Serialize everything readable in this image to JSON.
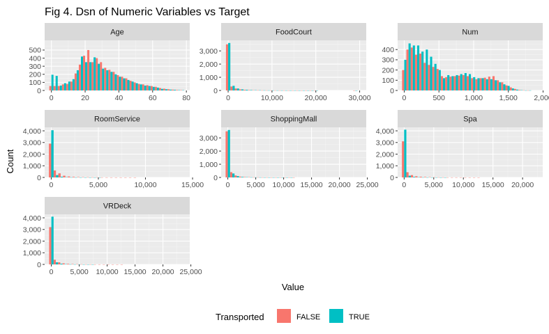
{
  "chart_data": {
    "type": "bar",
    "title": "Fig 4. Dsn of Numeric Variables vs Target",
    "xlabel": "Value",
    "ylabel": "Count",
    "legend": {
      "title": "Transported",
      "placement": "bottom",
      "entries": [
        {
          "label": "FALSE",
          "color": "#F8766D"
        },
        {
          "label": "TRUE",
          "color": "#00BFC4"
        }
      ]
    },
    "grid": true,
    "panels": [
      {
        "name": "Age",
        "xlim": [
          -4,
          82
        ],
        "ylim": [
          0,
          620
        ],
        "xticks": [
          {
            "v": 0,
            "label": "0"
          },
          {
            "v": 20,
            "label": "20"
          },
          {
            "v": 40,
            "label": "40"
          },
          {
            "v": 60,
            "label": "60"
          },
          {
            "v": 80,
            "label": "80"
          }
        ],
        "yticks": [
          {
            "v": 0,
            "label": "0"
          },
          {
            "v": 100,
            "label": "100"
          },
          {
            "v": 200,
            "label": "200"
          },
          {
            "v": 300,
            "label": "300"
          },
          {
            "v": 400,
            "label": "400"
          },
          {
            "v": 500,
            "label": "500"
          }
        ],
        "bin_start": -1.25,
        "bin_width": 2.5,
        "series": [
          {
            "name": "FALSE",
            "values": [
              55,
              55,
              55,
              75,
              80,
              110,
              210,
              320,
              430,
              500,
              350,
              400,
              350,
              280,
              255,
              230,
              190,
              170,
              150,
              120,
              100,
              80,
              75,
              65,
              55,
              45,
              30,
              22,
              15,
              10,
              6,
              4
            ]
          },
          {
            "name": "TRUE",
            "values": [
              195,
              180,
              60,
              90,
              110,
              140,
              250,
              420,
              350,
              350,
              410,
              330,
              270,
              250,
              230,
              200,
              170,
              150,
              130,
              110,
              90,
              75,
              60,
              55,
              45,
              35,
              20,
              15,
              10,
              8,
              4,
              3
            ]
          }
        ]
      },
      {
        "name": "FoodCourt",
        "xlim": [
          -1600,
          31500
        ],
        "ylim": [
          0,
          3800
        ],
        "xticks": [
          {
            "v": 0,
            "label": "0"
          },
          {
            "v": 10000,
            "label": "10,000"
          },
          {
            "v": 20000,
            "label": "20,000"
          },
          {
            "v": 30000,
            "label": "30,000"
          }
        ],
        "yticks": [
          {
            "v": 0,
            "label": "0"
          },
          {
            "v": 1000,
            "label": "1,000"
          },
          {
            "v": 2000,
            "label": "2,000"
          },
          {
            "v": 3000,
            "label": "3,000"
          }
        ],
        "bin_start": -500,
        "bin_width": 1000,
        "series": [
          {
            "name": "FALSE",
            "values": [
              3500,
              300,
              150,
              80,
              50,
              30,
              20,
              15,
              10,
              8,
              6,
              5,
              4,
              3,
              2,
              2,
              1,
              1,
              1,
              1,
              1,
              0,
              0,
              0,
              0,
              0,
              0,
              0,
              0,
              1,
              0
            ]
          },
          {
            "name": "TRUE",
            "values": [
              3600,
              350,
              150,
              80,
              50,
              30,
              20,
              15,
              10,
              8,
              6,
              5,
              4,
              3,
              2,
              2,
              1,
              1,
              1,
              1,
              1,
              0,
              0,
              0,
              0,
              0,
              0,
              0,
              0,
              1,
              0
            ]
          }
        ]
      },
      {
        "name": "Num",
        "xlim": [
          -95,
          1995
        ],
        "ylim": [
          0,
          490
        ],
        "xticks": [
          {
            "v": 0,
            "label": "0"
          },
          {
            "v": 500,
            "label": "500"
          },
          {
            "v": 1000,
            "label": "1,000"
          },
          {
            "v": 1500,
            "label": "1,500"
          },
          {
            "v": 2000,
            "label": "2,000"
          }
        ],
        "yticks": [
          {
            "v": 0,
            "label": "0"
          },
          {
            "v": 100,
            "label": "100"
          },
          {
            "v": 200,
            "label": "200"
          },
          {
            "v": 300,
            "label": "300"
          },
          {
            "v": 400,
            "label": "400"
          }
        ],
        "bin_start": -31,
        "bin_width": 62,
        "series": [
          {
            "name": "FALSE",
            "values": [
              200,
              400,
              420,
              350,
              360,
              270,
              250,
              230,
              210,
              140,
              130,
              135,
              140,
              145,
              150,
              140,
              120,
              110,
              120,
              125,
              135,
              140,
              100,
              80,
              50,
              30,
              15,
              5,
              2,
              1,
              0,
              0
            ]
          },
          {
            "name": "TRUE",
            "values": [
              300,
              460,
              440,
              440,
              380,
              400,
              330,
              260,
              200,
              120,
              150,
              140,
              150,
              160,
              170,
              160,
              130,
              120,
              120,
              110,
              110,
              100,
              80,
              60,
              45,
              20,
              8,
              3,
              1,
              1,
              0,
              0
            ]
          }
        ]
      },
      {
        "name": "RoomService",
        "xlim": [
          -700,
          14700
        ],
        "ylim": [
          0,
          4300
        ],
        "xticks": [
          {
            "v": 0,
            "label": "0"
          },
          {
            "v": 5000,
            "label": "5,000"
          },
          {
            "v": 10000,
            "label": "10,000"
          },
          {
            "v": 15000,
            "label": "15,000"
          }
        ],
        "yticks": [
          {
            "v": 0,
            "label": "0"
          },
          {
            "v": 1000,
            "label": "1,000"
          },
          {
            "v": 2000,
            "label": "2,000"
          },
          {
            "v": 3000,
            "label": "3,000"
          },
          {
            "v": 4000,
            "label": "4,000"
          }
        ],
        "bin_start": -250,
        "bin_width": 500,
        "series": [
          {
            "name": "FALSE",
            "values": [
              2900,
              600,
              350,
              150,
              80,
              50,
              30,
              20,
              15,
              10,
              8,
              5,
              4,
              3,
              2,
              2,
              1,
              1,
              1,
              0,
              0,
              0,
              0,
              0,
              0,
              0,
              0,
              0,
              0,
              0
            ]
          },
          {
            "name": "TRUE",
            "values": [
              4050,
              200,
              60,
              25,
              10,
              5,
              3,
              2,
              1,
              1,
              1,
              0,
              0,
              0,
              0,
              0,
              0,
              0,
              0,
              0,
              0,
              0,
              0,
              0,
              0,
              0,
              0,
              0,
              0,
              0
            ]
          }
        ]
      },
      {
        "name": "ShoppingMall",
        "xlim": [
          -1200,
          24800
        ],
        "ylim": [
          0,
          3800
        ],
        "xticks": [
          {
            "v": 0,
            "label": "0"
          },
          {
            "v": 5000,
            "label": "5,000"
          },
          {
            "v": 10000,
            "label": "10,000"
          },
          {
            "v": 15000,
            "label": "15,000"
          },
          {
            "v": 20000,
            "label": "20,000"
          },
          {
            "v": 25000,
            "label": "25,000"
          }
        ],
        "yticks": [
          {
            "v": 0,
            "label": "0"
          },
          {
            "v": 1000,
            "label": "1,000"
          },
          {
            "v": 2000,
            "label": "2,000"
          },
          {
            "v": 3000,
            "label": "3,000"
          }
        ],
        "bin_start": -400,
        "bin_width": 800,
        "series": [
          {
            "name": "FALSE",
            "values": [
              3500,
              400,
              150,
              60,
              30,
              20,
              10,
              8,
              5,
              4,
              3,
              2,
              2,
              1,
              1,
              1,
              0,
              0,
              0,
              0,
              0,
              0,
              0,
              0,
              0,
              0,
              0,
              0,
              0,
              0,
              0
            ]
          },
          {
            "name": "TRUE",
            "values": [
              3600,
              300,
              100,
              40,
              20,
              10,
              8,
              5,
              3,
              2,
              2,
              1,
              1,
              1,
              1,
              0,
              0,
              0,
              0,
              0,
              0,
              0,
              0,
              0,
              0,
              0,
              0,
              0,
              0,
              0,
              0
            ]
          }
        ]
      },
      {
        "name": "Spa",
        "xlim": [
          -1100,
          23400
        ],
        "ylim": [
          0,
          4300
        ],
        "xticks": [
          {
            "v": 0,
            "label": "0"
          },
          {
            "v": 5000,
            "label": "5,000"
          },
          {
            "v": 10000,
            "label": "10,000"
          },
          {
            "v": 15000,
            "label": "15,000"
          },
          {
            "v": 20000,
            "label": "20,000"
          }
        ],
        "yticks": [
          {
            "v": 0,
            "label": "0"
          },
          {
            "v": 1000,
            "label": "1,000"
          },
          {
            "v": 2000,
            "label": "2,000"
          },
          {
            "v": 3000,
            "label": "3,000"
          },
          {
            "v": 4000,
            "label": "4,000"
          }
        ],
        "bin_start": -375,
        "bin_width": 750,
        "series": [
          {
            "name": "FALSE",
            "values": [
              3100,
              450,
              200,
              100,
              60,
              40,
              25,
              15,
              10,
              8,
              5,
              4,
              3,
              2,
              2,
              1,
              1,
              1,
              0,
              0,
              0,
              0,
              0,
              0,
              0,
              0,
              0,
              0,
              0,
              0
            ]
          },
          {
            "name": "TRUE",
            "values": [
              4100,
              150,
              50,
              20,
              10,
              5,
              3,
              2,
              1,
              1,
              0,
              0,
              0,
              0,
              0,
              0,
              0,
              0,
              0,
              0,
              0,
              0,
              0,
              0,
              0,
              0,
              0,
              0,
              0,
              0
            ]
          }
        ]
      },
      {
        "name": "VRDeck",
        "xlim": [
          -1200,
          24800
        ],
        "ylim": [
          0,
          4300
        ],
        "xticks": [
          {
            "v": 0,
            "label": "0"
          },
          {
            "v": 5000,
            "label": "5,000"
          },
          {
            "v": 10000,
            "label": "10,000"
          },
          {
            "v": 15000,
            "label": "15,000"
          },
          {
            "v": 20000,
            "label": "20,000"
          },
          {
            "v": 25000,
            "label": "25,000"
          }
        ],
        "yticks": [
          {
            "v": 0,
            "label": "0"
          },
          {
            "v": 1000,
            "label": "1,000"
          },
          {
            "v": 2000,
            "label": "2,000"
          },
          {
            "v": 3000,
            "label": "3,000"
          },
          {
            "v": 4000,
            "label": "4,000"
          }
        ],
        "bin_start": -400,
        "bin_width": 800,
        "series": [
          {
            "name": "FALSE",
            "values": [
              3200,
              400,
              180,
              90,
              50,
              30,
              20,
              12,
              8,
              5,
              4,
              3,
              2,
              2,
              1,
              1,
              1,
              0,
              0,
              0,
              0,
              0,
              0,
              0,
              0,
              0,
              0,
              0,
              0,
              0,
              0
            ]
          },
          {
            "name": "TRUE",
            "values": [
              4100,
              180,
              60,
              25,
              10,
              6,
              3,
              2,
              1,
              1,
              0,
              0,
              0,
              0,
              0,
              0,
              0,
              0,
              0,
              0,
              0,
              0,
              0,
              0,
              0,
              0,
              0,
              0,
              0,
              0,
              0
            ]
          }
        ]
      }
    ]
  }
}
